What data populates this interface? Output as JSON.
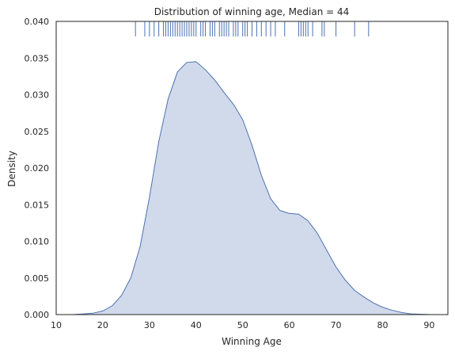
{
  "chart_data": {
    "type": "area",
    "title": "Distribution of winning age, Median = 44",
    "xlabel": "Winning Age",
    "ylabel": "Density",
    "xlim": [
      10,
      94
    ],
    "ylim": [
      0,
      0.04
    ],
    "xticks": [
      10,
      20,
      30,
      40,
      50,
      60,
      70,
      80,
      90
    ],
    "yticks": [
      0.0,
      0.005,
      0.01,
      0.015,
      0.02,
      0.025,
      0.03,
      0.035,
      0.04
    ],
    "ytick_labels": [
      "0.000",
      "0.005",
      "0.010",
      "0.015",
      "0.020",
      "0.025",
      "0.030",
      "0.035",
      "0.040"
    ],
    "grid": false,
    "fill_color": "#c9d4e8",
    "line_color": "#4c72b0",
    "series": [
      {
        "x": [
          13.5,
          16,
          18,
          20,
          22,
          24,
          26,
          28,
          30,
          32,
          34,
          36,
          38,
          40,
          42,
          44,
          46,
          48,
          50,
          52,
          54,
          56,
          58,
          60,
          62,
          64,
          66,
          68,
          70,
          72,
          74,
          76,
          78,
          80,
          82,
          84,
          86,
          88,
          90.5
        ],
        "y": [
          0.0,
          0.0001,
          0.0002,
          0.0005,
          0.0012,
          0.0026,
          0.005,
          0.0093,
          0.016,
          0.0236,
          0.0294,
          0.0331,
          0.0344,
          0.0345,
          0.0334,
          0.032,
          0.0303,
          0.0287,
          0.0266,
          0.0231,
          0.019,
          0.0158,
          0.0142,
          0.0138,
          0.0137,
          0.0128,
          0.0111,
          0.0088,
          0.0065,
          0.0047,
          0.0033,
          0.0024,
          0.0016,
          0.001,
          0.0006,
          0.0003,
          0.0001,
          5e-05,
          0.0
        ]
      }
    ],
    "rug": [
      27,
      29,
      30,
      31,
      32,
      33,
      33.5,
      34,
      34.5,
      35,
      35.5,
      36,
      36.5,
      37,
      37.5,
      38,
      38.5,
      39,
      39.5,
      40,
      41,
      41.5,
      42,
      43,
      43.5,
      44,
      45,
      45.5,
      46,
      46.5,
      47,
      48,
      48.5,
      49,
      50,
      50.5,
      51,
      52,
      53,
      54,
      55,
      56,
      57,
      59,
      62,
      62.5,
      63,
      63.5,
      64,
      65,
      67,
      67.5,
      70,
      74,
      77
    ]
  }
}
